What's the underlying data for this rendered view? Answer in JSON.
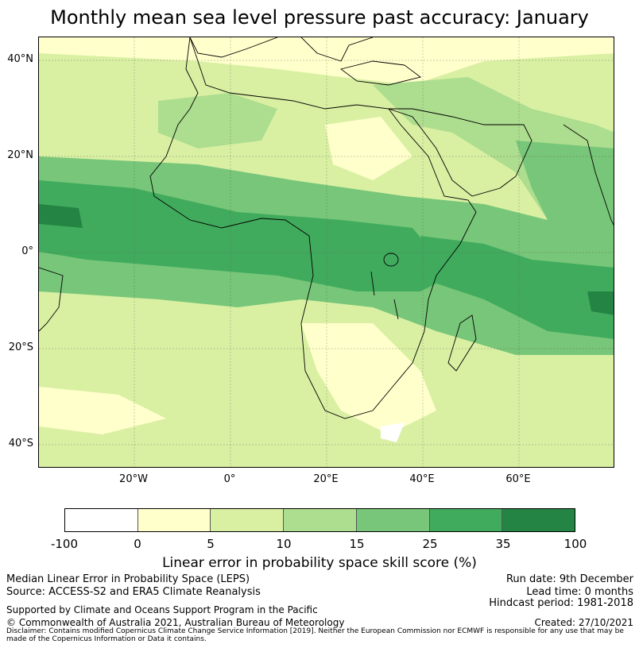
{
  "title": "Monthly mean sea level pressure past accuracy: January",
  "map": {
    "lat_ticks": [
      "40°N",
      "20°N",
      "0°",
      "20°S",
      "40°S"
    ],
    "lon_ticks": [
      "20°W",
      "0°",
      "20°E",
      "40°E",
      "60°E"
    ],
    "extent": {
      "lon": [
        -40,
        80
      ],
      "lat": [
        -45,
        45
      ]
    }
  },
  "colorbar": {
    "ticks": [
      "-100",
      "0",
      "5",
      "10",
      "15",
      "25",
      "35",
      "100"
    ],
    "colors": [
      "#ffffff",
      "#ffffcc",
      "#d9f0a3",
      "#addd8e",
      "#78c679",
      "#41ab5d",
      "#238443"
    ],
    "label": "Linear error in probability space skill score (%)"
  },
  "footer": {
    "left_line1": "Median Linear Error in Probability Space (LEPS)",
    "left_line2": "Source: ACCESS-S2 and ERA5 Climate Reanalysis",
    "run_date": "Run date: 9th December",
    "lead_time": "Lead time: 0 months",
    "hindcast": "Hindcast period: 1981-2018",
    "supported": "Supported by Climate and Oceans Support Program in the Pacific",
    "copyright": "© Commonwealth of Australia 2021, Australian Bureau of Meteorology",
    "created": "Created: 27/10/2021",
    "disclaimer": "Disclaimer: Contains modified Copernicus Climate Change Service Information [2019]. Neither the European Commission nor ECMWF is responsible for any use that may be made of the Copernicus Information or Data it contains."
  }
}
